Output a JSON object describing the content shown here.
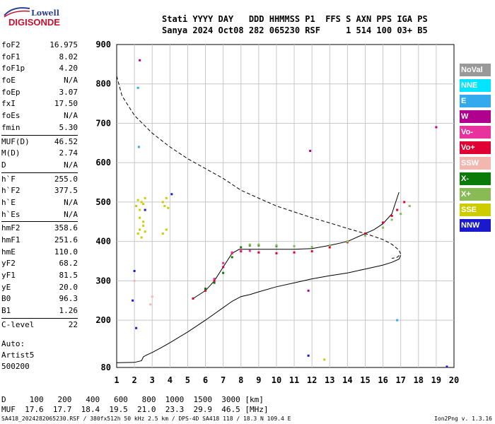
{
  "logo": {
    "line1": "Lowell",
    "line2": "DIGISONDE"
  },
  "header": {
    "cols": [
      "Stati",
      "YYYY",
      "DAY",
      "DDD",
      "HHMMSS",
      "P1",
      "FFS",
      "S",
      "AXN",
      "PPS",
      "IGA",
      "PS"
    ],
    "vals": [
      "Sanya",
      "2024",
      "Oct08",
      "282",
      "065230",
      "RSF",
      "",
      "1",
      "514",
      "100",
      "03+",
      "B5"
    ]
  },
  "params": [
    {
      "name": "foF2",
      "value": "16.975"
    },
    {
      "name": "foF1",
      "value": "8.02"
    },
    {
      "name": "foF1p",
      "value": "4.20"
    },
    {
      "name": "foE",
      "value": "N/A"
    },
    {
      "name": "foEp",
      "value": "3.07"
    },
    {
      "name": "fxI",
      "value": "17.50"
    },
    {
      "name": "foEs",
      "value": "N/A"
    },
    {
      "name": "fmin",
      "value": "5.30"
    },
    {
      "name": "MUF(D)",
      "value": "46.52",
      "sep": true
    },
    {
      "name": "M(D)",
      "value": "2.74"
    },
    {
      "name": "D",
      "value": "N/A"
    },
    {
      "name": "h`F",
      "value": "255.0",
      "sep": true
    },
    {
      "name": "h`F2",
      "value": "377.5"
    },
    {
      "name": "h`E",
      "value": "N/A"
    },
    {
      "name": "h`Es",
      "value": "N/A"
    },
    {
      "name": "hmF2",
      "value": "358.6",
      "sep": true
    },
    {
      "name": "hmF1",
      "value": "251.6"
    },
    {
      "name": "hmE",
      "value": "110.0"
    },
    {
      "name": "yF2",
      "value": "68.2"
    },
    {
      "name": "yF1",
      "value": "81.5"
    },
    {
      "name": "yE",
      "value": "20.0"
    },
    {
      "name": "B0",
      "value": "96.3"
    },
    {
      "name": "B1",
      "value": "1.26"
    },
    {
      "name": "C-level",
      "value": "22",
      "sep": true
    }
  ],
  "auto": {
    "label": "Auto:",
    "program": "Artist5",
    "code": "500200"
  },
  "legend": [
    {
      "label": "NoVal",
      "color": "#999999"
    },
    {
      "label": "NNE",
      "color": "#00e5ff"
    },
    {
      "label": "E",
      "color": "#33aaee"
    },
    {
      "label": "W",
      "color": "#b0008e"
    },
    {
      "label": "Vo-",
      "color": "#e8339e"
    },
    {
      "label": "Vo+",
      "color": "#e00033"
    },
    {
      "label": "SSW",
      "color": "#f2b8b0"
    },
    {
      "label": "X-",
      "color": "#0a7a0a"
    },
    {
      "label": "X+",
      "color": "#88bb55"
    },
    {
      "label": "SSE",
      "color": "#cccc00"
    },
    {
      "label": "NNW",
      "color": "#1a1acc"
    }
  ],
  "dmuf": {
    "d_label": "D",
    "d_values": [
      "100",
      "200",
      "400",
      "600",
      "800",
      "1000",
      "1500",
      "3000"
    ],
    "d_unit": "[km]",
    "muf_label": "MUF",
    "muf_values": [
      "17.6",
      "17.7",
      "18.4",
      "19.5",
      "21.0",
      "23.3",
      "29.9",
      "46.5"
    ],
    "muf_unit": "[MHz]"
  },
  "footer": {
    "text": "SA418_2024282065230.RSF / 380fx512h 50 kHz 2.5 km / DPS-4D SA418 118 / 18.3 N 109.4 E",
    "version": "Ion2Png v. 1.3.16"
  },
  "chart_data": {
    "type": "scatter",
    "xlabel": "",
    "ylabel": "",
    "xlim": [
      1,
      20
    ],
    "ylim": [
      80,
      900
    ],
    "xticks": [
      1,
      2,
      3,
      4,
      5,
      6,
      7,
      8,
      9,
      10,
      11,
      12,
      13,
      14,
      15,
      16,
      17,
      18,
      19,
      20
    ],
    "yticks": [
      80,
      200,
      300,
      400,
      500,
      600,
      700,
      800,
      900
    ],
    "grid": true,
    "lines": [
      {
        "style": "dashed",
        "x": [
          1.0,
          1.3,
          2.0,
          3.0,
          4.0,
          5.0,
          6.0,
          7.0,
          8.0,
          9.0,
          10.0,
          11.0,
          12.0,
          13.0,
          14.0,
          15.0,
          16.0,
          16.5,
          16.9,
          17.0,
          16.8,
          16.5
        ],
        "y": [
          820,
          770,
          720,
          675,
          640,
          610,
          585,
          560,
          530,
          510,
          490,
          475,
          460,
          447,
          433,
          420,
          405,
          393,
          378,
          368,
          360,
          357
        ]
      },
      {
        "style": "solid",
        "x": [
          1.0,
          2.0,
          2.4,
          2.5,
          2.7,
          3.0,
          3.5,
          4.0,
          5.0,
          6.0,
          7.0,
          7.5,
          8.0,
          8.5,
          9.0,
          10.0,
          11.0,
          12.0,
          13.0,
          14.0,
          15.0,
          16.0,
          16.5,
          16.9,
          17.0
        ],
        "y": [
          92,
          93,
          97,
          107,
          112,
          118,
          130,
          143,
          170,
          200,
          232,
          248,
          260,
          265,
          272,
          285,
          295,
          305,
          313,
          320,
          330,
          340,
          347,
          355,
          365
        ]
      },
      {
        "style": "solid",
        "x": [
          5.3,
          6.0,
          6.5,
          7.0,
          7.5,
          7.9,
          8.0,
          8.5,
          9.0,
          10.0,
          11.0,
          12.0,
          13.0,
          14.0,
          15.0,
          15.5,
          16.0,
          16.5,
          16.9
        ],
        "y": [
          255,
          275,
          300,
          335,
          370,
          380,
          380,
          380,
          380,
          380,
          380,
          382,
          390,
          400,
          420,
          430,
          445,
          470,
          525
        ]
      }
    ],
    "series": [
      {
        "name": "Vo+",
        "color": "#e00033",
        "x": [
          5.3,
          6.0,
          6.5,
          7.0,
          7.5,
          8.0,
          9.0,
          10.0,
          11.0,
          12.0,
          13.0,
          14.0,
          15.0,
          16.0,
          16.5,
          16.8,
          17.2
        ],
        "y": [
          255,
          275,
          300,
          335,
          370,
          375,
          372,
          370,
          372,
          375,
          385,
          398,
          420,
          448,
          465,
          480,
          500
        ]
      },
      {
        "name": "Vo-",
        "color": "#e8339e",
        "x": [
          6.5,
          7.0,
          7.5,
          8.0,
          8.5
        ],
        "y": [
          305,
          345,
          372,
          378,
          376
        ]
      },
      {
        "name": "X-",
        "color": "#0a7a0a",
        "x": [
          6.0,
          6.5,
          7.0,
          7.5,
          8.0,
          8.5,
          9.0,
          10.0
        ],
        "y": [
          280,
          295,
          320,
          360,
          385,
          390,
          390,
          388
        ]
      },
      {
        "name": "X+",
        "color": "#88bb55",
        "x": [
          8.5,
          9.0,
          10.0,
          11.0,
          12.0,
          13.0,
          14.0,
          15.0,
          16.0,
          16.5,
          17.0,
          17.5
        ],
        "y": [
          392,
          392,
          390,
          388,
          386,
          390,
          400,
          415,
          435,
          455,
          470,
          490
        ]
      },
      {
        "name": "SSE",
        "color": "#cccc00",
        "x": [
          2.1,
          2.2,
          2.3,
          2.4,
          2.5,
          2.6,
          2.2,
          2.3,
          2.4,
          2.5,
          2.6,
          3.6,
          3.7,
          3.8,
          3.9,
          3.6,
          3.8,
          2.3,
          2.5,
          12.7
        ],
        "y": [
          490,
          505,
          480,
          500,
          495,
          510,
          420,
          430,
          410,
          440,
          425,
          500,
          490,
          510,
          485,
          420,
          430,
          460,
          450,
          100
        ]
      },
      {
        "name": "NNW",
        "color": "#1a1acc",
        "x": [
          1.9,
          2.0,
          2.1,
          2.6,
          4.1,
          11.8,
          19.6
        ],
        "y": [
          250,
          325,
          180,
          480,
          520,
          110,
          82
        ]
      },
      {
        "name": "W",
        "color": "#b0008e",
        "x": [
          2.3,
          11.9,
          11.8,
          19.0
        ],
        "y": [
          860,
          630,
          275,
          690
        ]
      },
      {
        "name": "E",
        "color": "#33aaee",
        "x": [
          2.2,
          2.25,
          16.8
        ],
        "y": [
          790,
          640,
          200
        ]
      },
      {
        "name": "SSW",
        "color": "#f2b8b0",
        "x": [
          2.0,
          2.9,
          3.0
        ],
        "y": [
          300,
          240,
          260
        ]
      }
    ]
  }
}
